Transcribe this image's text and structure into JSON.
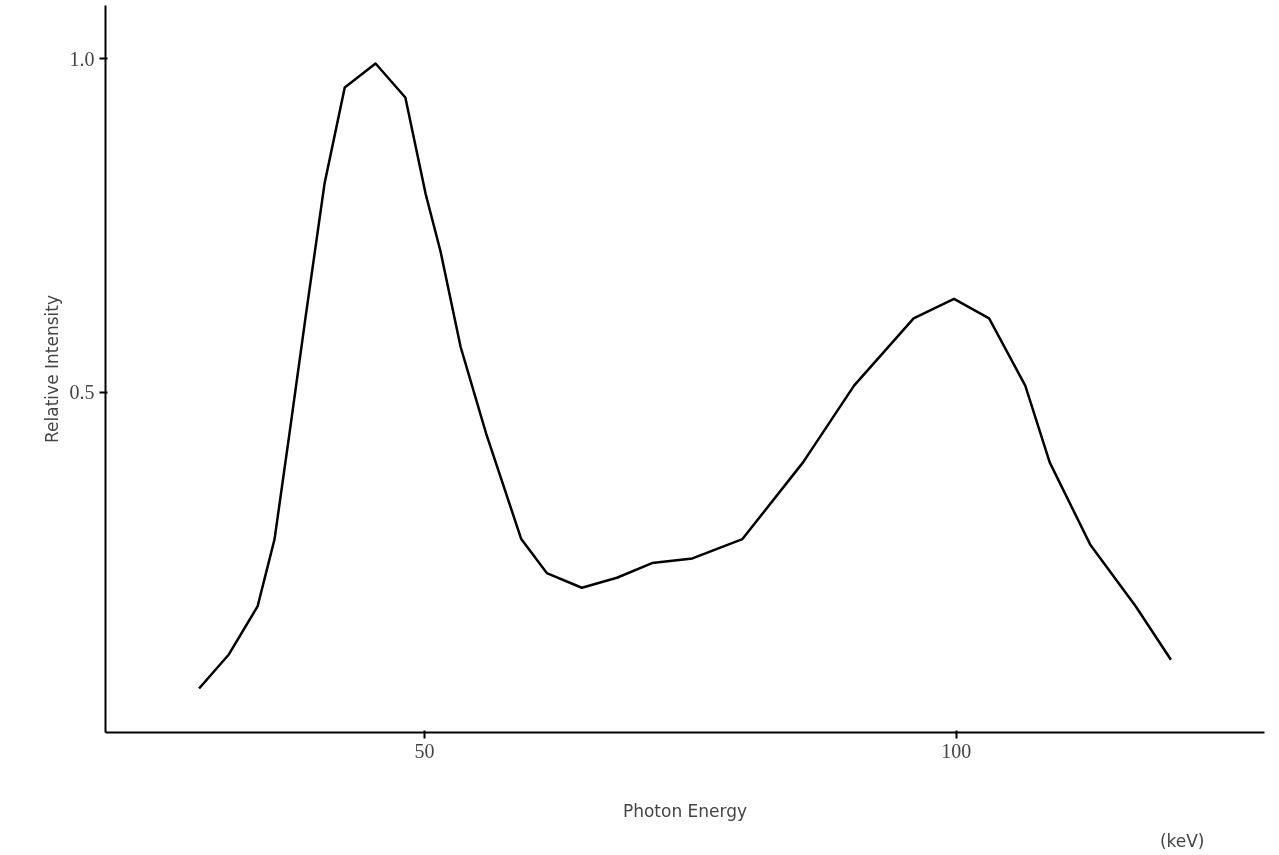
{
  "chart_data": {
    "type": "line",
    "xlabel": "Photon Energy",
    "ylabel": "Relative Intensity",
    "annotations": [
      "(keV)"
    ],
    "x": [
      28.8,
      31.6,
      34.3,
      35.9,
      37.3,
      38.8,
      40.6,
      42.5,
      45.4,
      48.2,
      50.1,
      51.5,
      53.4,
      55.8,
      59.1,
      61.5,
      64.8,
      68.1,
      71.4,
      75.2,
      79.9,
      85.6,
      90.4,
      96.0,
      99.8,
      103.1,
      106.5,
      108.8,
      112.6,
      116.9,
      120.2
    ],
    "series": [
      {
        "color": "#000000",
        "values": [
          0.056,
          0.107,
          0.179,
          0.28,
          0.438,
          0.611,
          0.813,
          0.957,
          0.993,
          0.942,
          0.798,
          0.712,
          0.568,
          0.438,
          0.28,
          0.229,
          0.207,
          0.222,
          0.244,
          0.251,
          0.28,
          0.395,
          0.51,
          0.611,
          0.64,
          0.611,
          0.51,
          0.395,
          0.272,
          0.179,
          0.099
        ]
      }
    ],
    "xlim": [
      20,
      129
    ],
    "ylim": [
      -0.01,
      1.08
    ],
    "xticks": [
      50,
      100
    ],
    "yticks": [
      {
        "value": 0.5,
        "label": "0.5"
      },
      {
        "value": 1.0,
        "label": "1.0"
      }
    ],
    "grid": false,
    "marker": "none",
    "line_style": "solid"
  }
}
